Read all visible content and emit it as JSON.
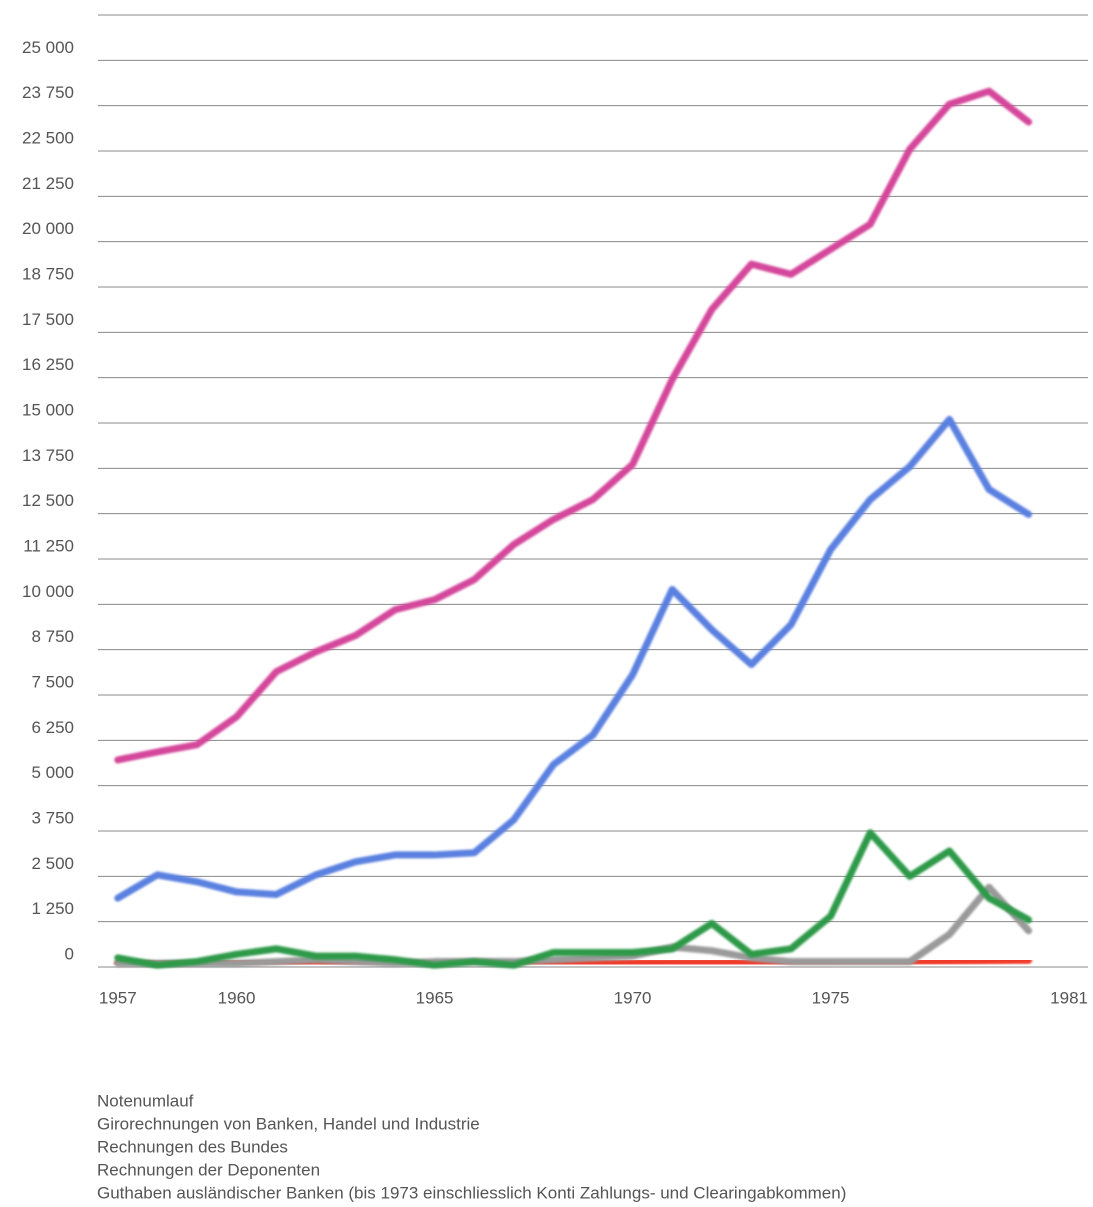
{
  "chart_data": {
    "type": "line",
    "x": [
      1957,
      1958,
      1959,
      1960,
      1961,
      1962,
      1963,
      1964,
      1965,
      1966,
      1967,
      1968,
      1969,
      1970,
      1971,
      1972,
      1973,
      1974,
      1975,
      1976,
      1977,
      1978,
      1979,
      1980
    ],
    "series": [
      {
        "name": "Notenumlauf",
        "color": "#d4479b",
        "values": [
          5710,
          5930,
          6130,
          6900,
          8140,
          8690,
          9140,
          9850,
          10130,
          10680,
          11650,
          12340,
          12890,
          13860,
          16200,
          18130,
          19380,
          19100,
          19790,
          20480,
          22550,
          23790,
          24150,
          23300
        ]
      },
      {
        "name": "Girorechnungen von Banken, Handel und Industrie",
        "color": "#5a80e0",
        "values": [
          1900,
          2540,
          2350,
          2070,
          2000,
          2540,
          2900,
          3090,
          3090,
          3150,
          4060,
          5580,
          6400,
          8060,
          10410,
          9300,
          8340,
          9440,
          11510,
          12890,
          13800,
          15100,
          13170,
          12480
        ]
      },
      {
        "name": "Rechnungen des Bundes",
        "color": "#2e9a4a",
        "values": [
          250,
          50,
          150,
          350,
          500,
          300,
          300,
          200,
          50,
          150,
          50,
          400,
          400,
          400,
          500,
          1200,
          350,
          500,
          1400,
          3700,
          2500,
          3200,
          1900,
          1300
        ]
      },
      {
        "name": "Rechnungen der Deponenten",
        "color": "#f03a2a",
        "values": [
          100,
          80,
          90,
          100,
          110,
          110,
          100,
          100,
          110,
          120,
          120,
          120,
          110,
          120,
          130,
          130,
          130,
          130,
          140,
          150,
          150,
          160,
          170,
          180
        ]
      },
      {
        "name": "Guthaben ausländischer Banken (bis 1973 einschliesslich Konti Zahlungs- und Clearingabkommen)",
        "color": "#9a9a9a",
        "values": [
          100,
          100,
          100,
          100,
          150,
          200,
          150,
          100,
          150,
          150,
          150,
          200,
          250,
          300,
          550,
          450,
          250,
          150,
          150,
          150,
          150,
          900,
          2200,
          1000
        ]
      }
    ],
    "xlim": [
      1956.5,
      1981.5
    ],
    "xticks": [
      1957,
      1960,
      1965,
      1970,
      1975,
      1981
    ],
    "ylim": [
      0,
      26250
    ],
    "yticks": [
      0,
      {
        "value": 1250,
        "label": "1 250"
      },
      {
        "value": 2500,
        "label": "2 500"
      },
      {
        "value": 3750,
        "label": "3 750"
      },
      {
        "value": 5000,
        "label": "5 000"
      },
      {
        "value": 6250,
        "label": "6 250"
      },
      {
        "value": 7500,
        "label": "7 500"
      },
      {
        "value": 8750,
        "label": "8 750"
      },
      {
        "value": 10000,
        "label": "10 000"
      },
      {
        "value": 11250,
        "label": "11 250"
      },
      {
        "value": 12500,
        "label": "12 500"
      },
      {
        "value": 13750,
        "label": "13 750"
      },
      {
        "value": 15000,
        "label": "15 000"
      },
      {
        "value": 16250,
        "label": "16 250"
      },
      {
        "value": 17500,
        "label": "17 500"
      },
      {
        "value": 18750,
        "label": "18 750"
      },
      {
        "value": 20000,
        "label": "20 000"
      },
      {
        "value": 21250,
        "label": "21 250"
      },
      {
        "value": 22500,
        "label": "22 500"
      },
      {
        "value": 23750,
        "label": "23 750"
      },
      {
        "value": 25000,
        "label": "25 000"
      }
    ],
    "grid": true
  }
}
